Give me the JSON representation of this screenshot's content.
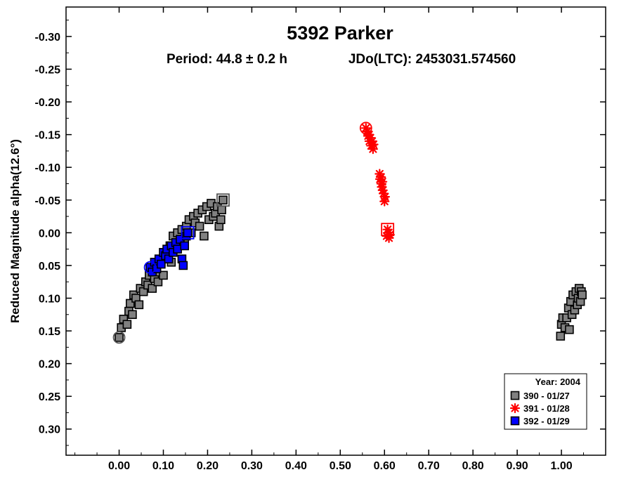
{
  "chart_data": {
    "type": "scatter",
    "title": "5392 Parker",
    "subtitle": {
      "period": "Period: 44.8 ± 0.2 h",
      "epoch": "JDo(LTC): 2453031.574560"
    },
    "xlabel": "",
    "ylabel": "Reduced Magnitude alpha(12.6°)",
    "xlim": [
      -0.12,
      1.1
    ],
    "ylim": [
      -0.345,
      0.34
    ],
    "y_inverted": true,
    "grid": false,
    "x_ticks": [
      0.0,
      0.1,
      0.2,
      0.3,
      0.4,
      0.5,
      0.6,
      0.7,
      0.8,
      0.9,
      1.0
    ],
    "x_tick_labels": [
      "0.00",
      "0.10",
      "0.20",
      "0.30",
      "0.40",
      "0.50",
      "0.60",
      "0.70",
      "0.80",
      "0.90",
      "1.00"
    ],
    "y_ticks": [
      -0.3,
      -0.25,
      -0.2,
      -0.15,
      -0.1,
      -0.05,
      0.0,
      0.05,
      0.1,
      0.15,
      0.2,
      0.25,
      0.3
    ],
    "y_tick_labels": [
      "-0.30",
      "-0.25",
      "-0.20",
      "-0.15",
      "-0.10",
      "-0.05",
      "0.00",
      "0.05",
      "0.10",
      "0.15",
      "0.20",
      "0.25",
      "0.30"
    ],
    "legend": {
      "placement": "bottom-right",
      "title": "Year: 2004"
    },
    "series": [
      {
        "name": "390 - 01/27",
        "marker": "square",
        "color": "#808080",
        "start": [
          0.0,
          0.16
        ],
        "end": [
          0.235,
          -0.05
        ],
        "points": [
          [
            0.0,
            0.16
          ],
          [
            0.005,
            0.145
          ],
          [
            0.01,
            0.132
          ],
          [
            0.018,
            0.14
          ],
          [
            0.022,
            0.12
          ],
          [
            0.025,
            0.108
          ],
          [
            0.03,
            0.125
          ],
          [
            0.033,
            0.095
          ],
          [
            0.038,
            0.1
          ],
          [
            0.045,
            0.11
          ],
          [
            0.048,
            0.085
          ],
          [
            0.055,
            0.09
          ],
          [
            0.06,
            0.075
          ],
          [
            0.065,
            0.08
          ],
          [
            0.068,
            0.065
          ],
          [
            0.075,
            0.085
          ],
          [
            0.08,
            0.07
          ],
          [
            0.085,
            0.06
          ],
          [
            0.088,
            0.075
          ],
          [
            0.095,
            0.045
          ],
          [
            0.1,
            0.065
          ],
          [
            0.105,
            0.04
          ],
          [
            0.11,
            0.03
          ],
          [
            0.115,
            0.02
          ],
          [
            0.118,
            0.045
          ],
          [
            0.122,
            0.005
          ],
          [
            0.128,
            0.025
          ],
          [
            0.132,
            0.0
          ],
          [
            0.138,
            0.015
          ],
          [
            0.142,
            -0.005
          ],
          [
            0.148,
            0.01
          ],
          [
            0.152,
            -0.01
          ],
          [
            0.158,
            -0.02
          ],
          [
            0.163,
            0.0
          ],
          [
            0.168,
            -0.025
          ],
          [
            0.172,
            -0.015
          ],
          [
            0.178,
            -0.03
          ],
          [
            0.182,
            -0.01
          ],
          [
            0.188,
            -0.035
          ],
          [
            0.192,
            0.005
          ],
          [
            0.198,
            -0.04
          ],
          [
            0.203,
            -0.02
          ],
          [
            0.208,
            -0.045
          ],
          [
            0.213,
            -0.025
          ],
          [
            0.218,
            -0.03
          ],
          [
            0.222,
            -0.04
          ],
          [
            0.226,
            -0.01
          ],
          [
            0.23,
            -0.02
          ],
          [
            0.232,
            -0.035
          ],
          [
            0.235,
            -0.05
          ],
          [
            0.998,
            0.158
          ],
          [
            1.0,
            0.14
          ],
          [
            1.003,
            0.13
          ],
          [
            1.008,
            0.145
          ],
          [
            1.012,
            0.13
          ],
          [
            1.016,
            0.115
          ],
          [
            1.018,
            0.148
          ],
          [
            1.021,
            0.105
          ],
          [
            1.024,
            0.125
          ],
          [
            1.026,
            0.095
          ],
          [
            1.03,
            0.118
          ],
          [
            1.033,
            0.09
          ],
          [
            1.036,
            0.11
          ],
          [
            1.038,
            0.1
          ],
          [
            1.04,
            0.085
          ],
          [
            1.043,
            0.105
          ],
          [
            1.045,
            0.09
          ],
          [
            1.047,
            0.095
          ]
        ]
      },
      {
        "name": "391 - 01/28",
        "marker": "asterisk",
        "color": "#ff0000",
        "start": [
          0.558,
          -0.16
        ],
        "end": [
          0.607,
          -0.005
        ],
        "points": [
          [
            0.558,
            -0.16
          ],
          [
            0.561,
            -0.155
          ],
          [
            0.563,
            -0.148
          ],
          [
            0.565,
            -0.15
          ],
          [
            0.566,
            -0.14
          ],
          [
            0.568,
            -0.145
          ],
          [
            0.57,
            -0.133
          ],
          [
            0.572,
            -0.14
          ],
          [
            0.574,
            -0.128
          ],
          [
            0.575,
            -0.135
          ],
          [
            0.589,
            -0.09
          ],
          [
            0.59,
            -0.082
          ],
          [
            0.592,
            -0.085
          ],
          [
            0.593,
            -0.075
          ],
          [
            0.594,
            -0.07
          ],
          [
            0.595,
            -0.078
          ],
          [
            0.596,
            -0.065
          ],
          [
            0.598,
            -0.06
          ],
          [
            0.6,
            -0.048
          ],
          [
            0.601,
            -0.055
          ],
          [
            0.605,
            0.005
          ],
          [
            0.607,
            -0.005
          ],
          [
            0.609,
            0.0
          ],
          [
            0.61,
            0.008
          ],
          [
            0.612,
            0.003
          ]
        ]
      },
      {
        "name": "392 - 01/29",
        "marker": "square",
        "color": "#0000ff",
        "start": [
          0.07,
          0.053
        ],
        "end": [
          0.155,
          0.0
        ],
        "points": [
          [
            0.07,
            0.053
          ],
          [
            0.075,
            0.06
          ],
          [
            0.08,
            0.045
          ],
          [
            0.085,
            0.055
          ],
          [
            0.09,
            0.04
          ],
          [
            0.095,
            0.048
          ],
          [
            0.1,
            0.03
          ],
          [
            0.105,
            0.035
          ],
          [
            0.108,
            0.025
          ],
          [
            0.112,
            0.04
          ],
          [
            0.118,
            0.02
          ],
          [
            0.122,
            0.03
          ],
          [
            0.128,
            0.015
          ],
          [
            0.132,
            0.025
          ],
          [
            0.138,
            0.01
          ],
          [
            0.142,
            0.04
          ],
          [
            0.145,
            0.05
          ],
          [
            0.148,
            0.02
          ],
          [
            0.152,
            0.005
          ],
          [
            0.155,
            0.0
          ]
        ]
      }
    ]
  }
}
